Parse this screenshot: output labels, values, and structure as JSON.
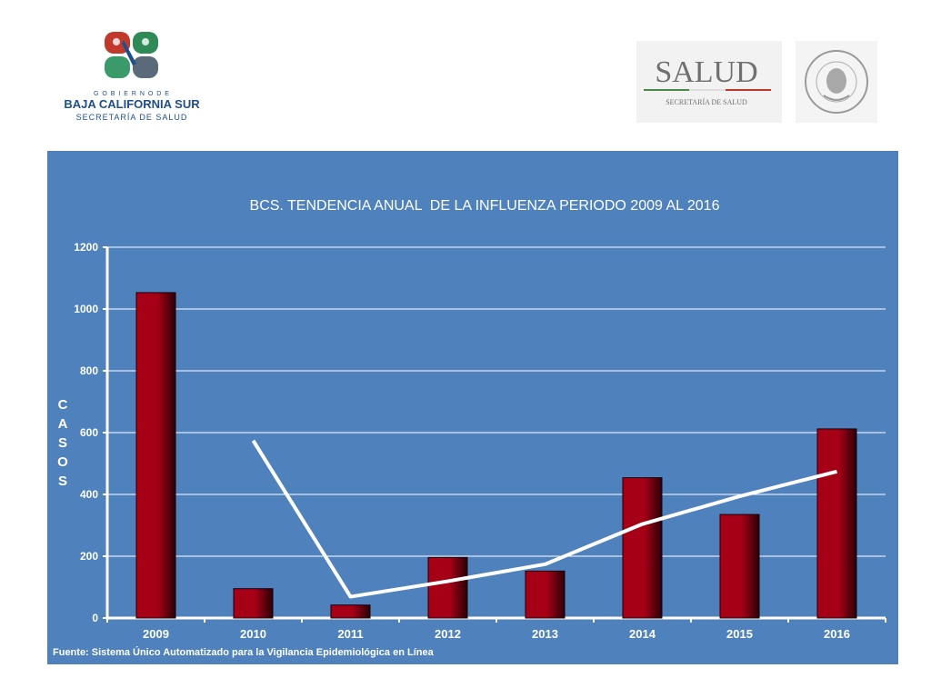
{
  "header": {
    "left_logo": {
      "top_line": "G O B I E R N O   D E",
      "name": "BAJA CALIFORNIA SUR",
      "sub": "SECRETARÍA DE SALUD"
    },
    "right_logo": {
      "name": "SALUD",
      "sub": "SECRETARÍA DE SALUD",
      "seal_text": "ESTADOS UNIDOS MEXICANOS"
    }
  },
  "colors": {
    "panel_bg": "#4f81bd",
    "bar_fill": "#a50016",
    "bar_dark": "#2a0006",
    "line": "#ffffff",
    "logo_blue": "#1f4e8c"
  },
  "chart_data": {
    "type": "bar",
    "title": "BCS. TENDENCIA ANUAL  DE LA INFLUENZA PERIODO 2009 AL 2016",
    "ylabel": "CASOS",
    "xlabel": "",
    "categories": [
      "2009",
      "2010",
      "2011",
      "2012",
      "2013",
      "2014",
      "2015",
      "2016"
    ],
    "series": [
      {
        "type": "bar",
        "values": [
          1053,
          95,
          42,
          196,
          152,
          454,
          335,
          612
        ]
      },
      {
        "type": "line",
        "x": [
          "2010",
          "2011",
          "2012",
          "2013",
          "2014",
          "2015",
          "2016"
        ],
        "values": [
          574,
          69,
          119,
          174,
          304,
          394,
          474
        ]
      }
    ],
    "ylim": [
      0,
      1200
    ],
    "yticks": [
      0,
      200,
      400,
      600,
      800,
      1000,
      1200
    ],
    "grid": true,
    "legend": "none",
    "source": "Fuente: Sistema Único Automatizado para la Vigilancia Epidemiológica en Línea"
  }
}
